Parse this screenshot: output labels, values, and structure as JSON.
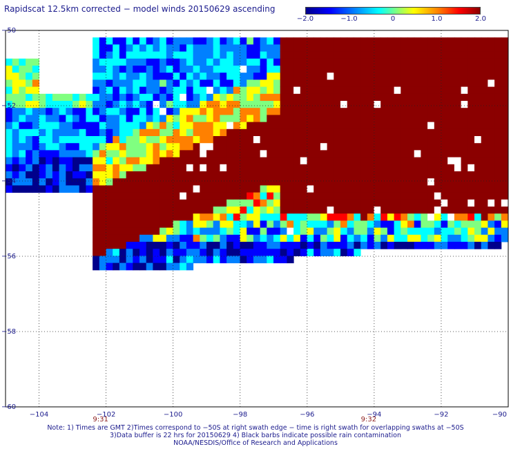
{
  "title": "Rapidscat 12.5km corrected − model winds 20150629 ascending",
  "colorbar": {
    "ticks": [
      "−2.0",
      "−1.0",
      "0",
      "1.0",
      "2.0"
    ],
    "tick_values": [
      -2.0,
      -1.0,
      0,
      1.0,
      2.0
    ],
    "range": [
      -2.0,
      2.0
    ],
    "colors": [
      "#00008b",
      "#0000ff",
      "#0080ff",
      "#00ffff",
      "#80ff80",
      "#ffff00",
      "#ff8000",
      "#ff0000",
      "#8b0000"
    ]
  },
  "map": {
    "lon_range": [
      -105,
      -90
    ],
    "lat_range": [
      -60,
      -50
    ],
    "x_ticks": [
      {
        "label": "−104",
        "value": -104
      },
      {
        "label": "−102",
        "value": -102
      },
      {
        "label": "−100",
        "value": -100
      },
      {
        "label": "−98",
        "value": -98
      },
      {
        "label": "−96",
        "value": -96
      },
      {
        "label": "−94",
        "value": -94
      },
      {
        "label": "−92",
        "value": -92
      },
      {
        "label": "−90",
        "value": -90
      }
    ],
    "y_ticks": [
      {
        "label": "−50",
        "value": -50
      },
      {
        "label": "−52",
        "value": -52
      },
      {
        "label": "−54",
        "value": -54
      },
      {
        "label": "−56",
        "value": -56
      },
      {
        "label": "−58",
        "value": -58
      },
      {
        "label": "−60",
        "value": -60
      }
    ],
    "gridlines": "dotted",
    "swath_times": [
      {
        "label": "9:31",
        "lon": -102
      },
      {
        "label": "9:32",
        "lon": -94
      }
    ]
  },
  "notes": {
    "line1": "Note: 1) Times are GMT 2)Times correspond to −50S at right swath edge − time is right swath for overlapping swaths at −50S",
    "line2": "3)Data buffer is 22 hrs for 20150629 4) Black barbs indicate possible rain contamination",
    "line3": "NOAA/NESDIS/Office of Research and Applications"
  }
}
